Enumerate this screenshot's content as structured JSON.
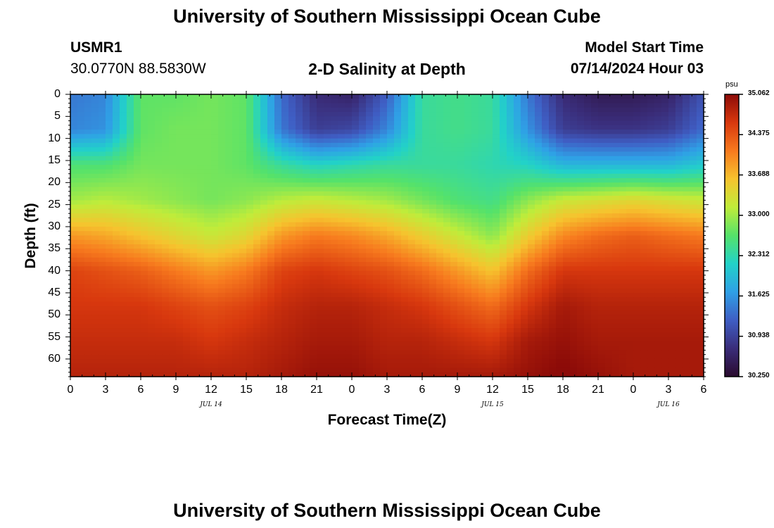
{
  "header": {
    "title": "University of Southern Mississippi Ocean Cube",
    "station_id": "USMR1",
    "coordinates": "30.0770N  88.5830W",
    "subtitle": "2-D Salinity at Depth",
    "start_label": "Model Start Time",
    "start_value": "07/14/2024 Hour 03"
  },
  "footer": {
    "title": "University of Southern Mississippi Ocean Cube"
  },
  "colorbar": {
    "unit": "psu",
    "min": 30.25,
    "max": 35.062,
    "ticks": [
      "35.062",
      "34.375",
      "33.688",
      "33.000",
      "32.312",
      "31.625",
      "30.938",
      "30.250"
    ],
    "colors": [
      "#2a0a2e",
      "#3a2d7a",
      "#3f5ec4",
      "#2fa0e6",
      "#22d2c8",
      "#55e26a",
      "#c0ec3a",
      "#f6c32e",
      "#f77a1e",
      "#d8380e",
      "#8c0b08"
    ]
  },
  "chart_data": {
    "type": "heatmap",
    "title": "2-D Salinity at Depth",
    "xlabel": "Forecast Time(Z)",
    "ylabel": "Depth (ft)",
    "x_hours_range": [
      0,
      54
    ],
    "y_depth_range_ft": [
      0,
      64
    ],
    "x_tick_labels": [
      "0",
      "3",
      "6",
      "9",
      "12",
      "15",
      "18",
      "21",
      "0",
      "3",
      "6",
      "9",
      "12",
      "15",
      "18",
      "21",
      "0",
      "3",
      "6"
    ],
    "y_tick_labels": [
      "0",
      "5",
      "10",
      "15",
      "20",
      "25",
      "30",
      "35",
      "40",
      "45",
      "50",
      "55",
      "60"
    ],
    "day_labels": [
      {
        "text": "JUL 14",
        "hour": 12
      },
      {
        "text": "JUL 15",
        "hour": 36
      },
      {
        "text": "JUL 16",
        "hour": 51
      }
    ],
    "depth_rows_ft": [
      0,
      8,
      16,
      24,
      32,
      40,
      48,
      56,
      64
    ],
    "time_cols_hours": [
      0,
      3,
      6,
      9,
      12,
      15,
      18,
      21,
      24,
      27,
      30,
      33,
      36,
      39,
      42,
      45,
      48,
      51,
      54
    ],
    "salinity_psu": [
      [
        31.4,
        31.5,
        32.7,
        32.7,
        32.8,
        32.7,
        31.3,
        30.7,
        30.6,
        31.2,
        32.4,
        32.5,
        32.4,
        31.4,
        30.7,
        30.5,
        30.5,
        30.6,
        31.1
      ],
      [
        31.5,
        31.6,
        32.7,
        32.8,
        32.8,
        32.7,
        31.4,
        30.9,
        31.0,
        31.5,
        32.4,
        32.5,
        32.4,
        31.6,
        30.9,
        30.8,
        30.8,
        30.9,
        31.3
      ],
      [
        32.6,
        32.6,
        32.8,
        32.8,
        32.8,
        32.7,
        32.4,
        32.2,
        32.3,
        32.4,
        32.4,
        32.4,
        32.3,
        32.2,
        31.9,
        31.9,
        31.9,
        31.9,
        32.1
      ],
      [
        33.0,
        33.1,
        33.0,
        32.9,
        32.8,
        32.9,
        33.1,
        33.2,
        33.1,
        33.0,
        32.8,
        32.6,
        32.5,
        32.9,
        33.2,
        33.3,
        33.4,
        33.3,
        33.2
      ],
      [
        33.9,
        33.8,
        33.6,
        33.4,
        33.2,
        33.4,
        33.9,
        34.1,
        34.0,
        33.8,
        33.5,
        33.2,
        32.9,
        33.5,
        34.0,
        34.2,
        34.3,
        34.2,
        34.1
      ],
      [
        34.5,
        34.4,
        34.3,
        34.1,
        33.9,
        34.1,
        34.5,
        34.6,
        34.5,
        34.4,
        34.2,
        33.9,
        33.6,
        34.2,
        34.6,
        34.6,
        34.6,
        34.6,
        34.6
      ],
      [
        34.6,
        34.6,
        34.6,
        34.5,
        34.4,
        34.5,
        34.7,
        34.8,
        34.8,
        34.7,
        34.6,
        34.4,
        34.2,
        34.6,
        34.9,
        34.8,
        34.8,
        34.8,
        34.8
      ],
      [
        34.7,
        34.7,
        34.7,
        34.7,
        34.6,
        34.7,
        34.8,
        34.9,
        34.9,
        34.8,
        34.8,
        34.7,
        34.6,
        34.9,
        35.0,
        34.9,
        34.9,
        34.9,
        34.9
      ],
      [
        34.8,
        34.8,
        34.8,
        34.8,
        34.8,
        34.8,
        34.9,
        35.0,
        35.0,
        34.9,
        34.9,
        34.9,
        34.9,
        35.0,
        35.1,
        35.0,
        34.9,
        34.9,
        34.9
      ]
    ]
  }
}
